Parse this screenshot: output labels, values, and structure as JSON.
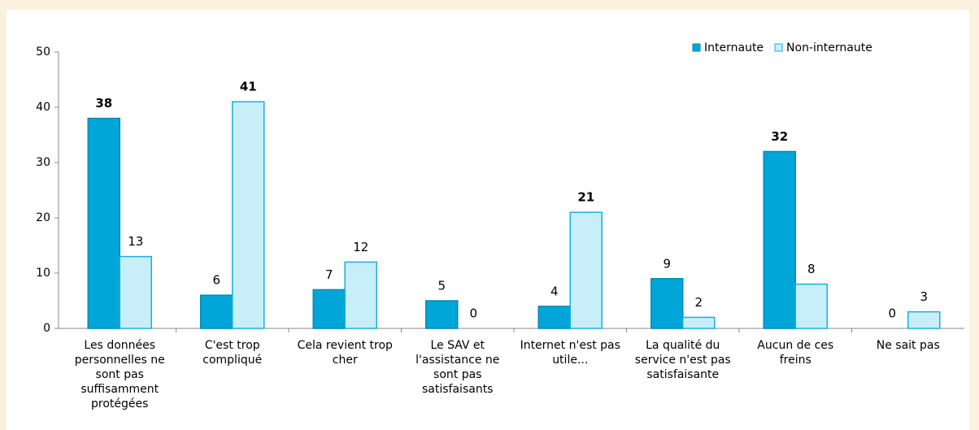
{
  "chart_data": {
    "type": "bar",
    "categories": [
      "Les données personnelles ne sont pas suffisamment protégées",
      "C'est trop compliqué",
      "Cela revient trop cher",
      "Le SAV et l'assistance ne sont pas satisfaisants",
      "Internet n'est pas utile...",
      "La qualité du service n'est pas satisfaisante",
      "Aucun de ces freins",
      "Ne sait pas"
    ],
    "series": [
      {
        "name": "Internaute",
        "color": "#00a6d8",
        "border": "#0089b8",
        "values": [
          38,
          6,
          7,
          5,
          4,
          9,
          32,
          0
        ],
        "bold_labels": [
          true,
          false,
          false,
          false,
          false,
          false,
          true,
          false
        ]
      },
      {
        "name": "Non-internaute",
        "color": "#c8eefa",
        "border": "#19afdc",
        "values": [
          13,
          41,
          12,
          0,
          21,
          2,
          8,
          3
        ],
        "bold_labels": [
          false,
          true,
          false,
          false,
          true,
          false,
          false,
          false
        ]
      }
    ],
    "ylim": [
      0,
      50
    ],
    "yticks": [
      0,
      10,
      20,
      30,
      40,
      50
    ],
    "grid": false,
    "legend": "top-right"
  }
}
